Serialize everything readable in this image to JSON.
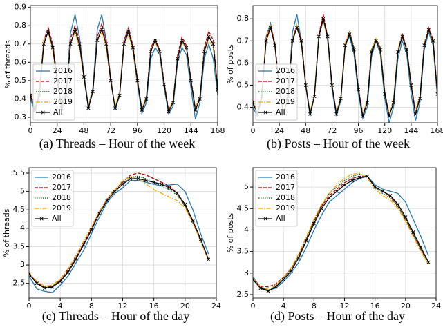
{
  "chart_data": [
    {
      "type": "line",
      "caption": "(a) Threads – Hour of the week",
      "ylabel": "% of threads",
      "grid": true,
      "legend": "lower left",
      "x": [
        0,
        4,
        8,
        12,
        16,
        20,
        24,
        28,
        32,
        36,
        40,
        44,
        48,
        52,
        56,
        60,
        64,
        68,
        72,
        76,
        80,
        84,
        88,
        92,
        96,
        100,
        104,
        108,
        112,
        116,
        120,
        124,
        128,
        132,
        136,
        140,
        144,
        148,
        152,
        156,
        160,
        164,
        168
      ],
      "xlim": [
        0,
        168
      ],
      "xticks": [
        0,
        24,
        48,
        72,
        96,
        120,
        144,
        168
      ],
      "ylim": [
        0.27,
        0.91
      ],
      "yticks": [
        0.3,
        0.4,
        0.5,
        0.6,
        0.7,
        0.8,
        0.9
      ],
      "series": [
        {
          "name": "2016",
          "color": "#1f77b4",
          "linestyle": "solid",
          "values": [
            0.4,
            0.33,
            0.42,
            0.72,
            0.76,
            0.7,
            0.52,
            0.36,
            0.46,
            0.76,
            0.86,
            0.74,
            0.54,
            0.36,
            0.46,
            0.78,
            0.86,
            0.72,
            0.52,
            0.34,
            0.42,
            0.72,
            0.78,
            0.66,
            0.48,
            0.32,
            0.38,
            0.62,
            0.68,
            0.64,
            0.46,
            0.32,
            0.36,
            0.6,
            0.68,
            0.64,
            0.46,
            0.29,
            0.38,
            0.62,
            0.7,
            0.62,
            0.42
          ]
        },
        {
          "name": "2017",
          "color": "#c00000",
          "linestyle": "dashed",
          "values": [
            0.43,
            0.35,
            0.43,
            0.72,
            0.79,
            0.7,
            0.51,
            0.35,
            0.43,
            0.73,
            0.8,
            0.72,
            0.53,
            0.35,
            0.45,
            0.74,
            0.81,
            0.72,
            0.51,
            0.35,
            0.43,
            0.72,
            0.79,
            0.69,
            0.51,
            0.34,
            0.41,
            0.68,
            0.73,
            0.67,
            0.49,
            0.34,
            0.39,
            0.64,
            0.74,
            0.69,
            0.51,
            0.35,
            0.41,
            0.68,
            0.77,
            0.72,
            0.46
          ]
        },
        {
          "name": "2018",
          "color": "#005a00",
          "linestyle": "dotted",
          "values": [
            0.42,
            0.34,
            0.42,
            0.7,
            0.77,
            0.68,
            0.5,
            0.35,
            0.43,
            0.7,
            0.77,
            0.69,
            0.52,
            0.35,
            0.44,
            0.72,
            0.78,
            0.7,
            0.5,
            0.35,
            0.42,
            0.7,
            0.76,
            0.67,
            0.5,
            0.34,
            0.4,
            0.66,
            0.73,
            0.66,
            0.48,
            0.33,
            0.39,
            0.62,
            0.71,
            0.68,
            0.5,
            0.34,
            0.4,
            0.66,
            0.74,
            0.7,
            0.45
          ]
        },
        {
          "name": "2019",
          "color": "#ffa500",
          "linestyle": "dashdot",
          "values": [
            0.42,
            0.35,
            0.44,
            0.72,
            0.76,
            0.66,
            0.49,
            0.36,
            0.44,
            0.71,
            0.76,
            0.68,
            0.51,
            0.36,
            0.45,
            0.72,
            0.76,
            0.68,
            0.49,
            0.36,
            0.43,
            0.7,
            0.75,
            0.66,
            0.49,
            0.35,
            0.41,
            0.66,
            0.71,
            0.65,
            0.47,
            0.34,
            0.39,
            0.63,
            0.71,
            0.67,
            0.49,
            0.35,
            0.41,
            0.66,
            0.72,
            0.68,
            0.44
          ]
        },
        {
          "name": "All",
          "color": "#000000",
          "linestyle": "solid",
          "marker": "x",
          "values": [
            0.42,
            0.34,
            0.42,
            0.7,
            0.77,
            0.68,
            0.5,
            0.35,
            0.42,
            0.7,
            0.78,
            0.7,
            0.52,
            0.35,
            0.44,
            0.72,
            0.78,
            0.7,
            0.5,
            0.35,
            0.42,
            0.7,
            0.77,
            0.68,
            0.5,
            0.34,
            0.4,
            0.66,
            0.72,
            0.66,
            0.48,
            0.33,
            0.38,
            0.62,
            0.72,
            0.68,
            0.5,
            0.34,
            0.4,
            0.66,
            0.74,
            0.7,
            0.45
          ]
        }
      ]
    },
    {
      "type": "line",
      "caption": "(b) Posts – Hour of the week",
      "ylabel": "% of posts",
      "grid": true,
      "legend": "lower left",
      "x": [
        0,
        4,
        8,
        12,
        16,
        20,
        24,
        28,
        32,
        36,
        40,
        44,
        48,
        52,
        56,
        60,
        64,
        68,
        72,
        76,
        80,
        84,
        88,
        92,
        96,
        100,
        104,
        108,
        112,
        116,
        120,
        124,
        128,
        132,
        136,
        140,
        144,
        148,
        152,
        156,
        160,
        164,
        168
      ],
      "xlim": [
        0,
        168
      ],
      "xticks": [
        0,
        24,
        48,
        72,
        96,
        120,
        144,
        168
      ],
      "ylim": [
        0.33,
        0.86
      ],
      "yticks": [
        0.4,
        0.5,
        0.6,
        0.7,
        0.8
      ],
      "series": [
        {
          "name": "2016",
          "color": "#1f77b4",
          "linestyle": "solid",
          "values": [
            0.4,
            0.36,
            0.44,
            0.72,
            0.78,
            0.68,
            0.48,
            0.37,
            0.46,
            0.74,
            0.82,
            0.7,
            0.5,
            0.36,
            0.45,
            0.73,
            0.8,
            0.7,
            0.48,
            0.36,
            0.43,
            0.68,
            0.72,
            0.64,
            0.46,
            0.35,
            0.4,
            0.63,
            0.7,
            0.64,
            0.44,
            0.33,
            0.4,
            0.62,
            0.7,
            0.64,
            0.46,
            0.34,
            0.42,
            0.66,
            0.74,
            0.68,
            0.44
          ]
        },
        {
          "name": "2017",
          "color": "#c00000",
          "linestyle": "dashed",
          "values": [
            0.43,
            0.37,
            0.45,
            0.71,
            0.77,
            0.69,
            0.49,
            0.37,
            0.45,
            0.71,
            0.77,
            0.71,
            0.51,
            0.37,
            0.45,
            0.73,
            0.82,
            0.72,
            0.5,
            0.37,
            0.44,
            0.69,
            0.74,
            0.67,
            0.49,
            0.37,
            0.43,
            0.66,
            0.71,
            0.67,
            0.47,
            0.37,
            0.43,
            0.66,
            0.73,
            0.67,
            0.51,
            0.38,
            0.45,
            0.69,
            0.76,
            0.71,
            0.47
          ]
        },
        {
          "name": "2018",
          "color": "#005a00",
          "linestyle": "dotted",
          "values": [
            0.42,
            0.37,
            0.45,
            0.7,
            0.76,
            0.68,
            0.48,
            0.37,
            0.45,
            0.7,
            0.76,
            0.7,
            0.5,
            0.37,
            0.46,
            0.72,
            0.79,
            0.72,
            0.5,
            0.37,
            0.44,
            0.68,
            0.74,
            0.67,
            0.48,
            0.36,
            0.43,
            0.66,
            0.71,
            0.67,
            0.47,
            0.36,
            0.42,
            0.66,
            0.72,
            0.67,
            0.5,
            0.37,
            0.44,
            0.68,
            0.75,
            0.7,
            0.46
          ]
        },
        {
          "name": "2019",
          "color": "#ffa500",
          "linestyle": "dashdot",
          "values": [
            0.42,
            0.38,
            0.46,
            0.72,
            0.77,
            0.67,
            0.48,
            0.38,
            0.46,
            0.71,
            0.77,
            0.69,
            0.5,
            0.38,
            0.46,
            0.73,
            0.79,
            0.71,
            0.49,
            0.38,
            0.45,
            0.69,
            0.74,
            0.66,
            0.48,
            0.37,
            0.43,
            0.66,
            0.71,
            0.65,
            0.46,
            0.37,
            0.43,
            0.66,
            0.72,
            0.66,
            0.49,
            0.38,
            0.45,
            0.69,
            0.75,
            0.69,
            0.45
          ]
        },
        {
          "name": "All",
          "color": "#000000",
          "linestyle": "solid",
          "marker": "x",
          "values": [
            0.42,
            0.37,
            0.45,
            0.7,
            0.76,
            0.68,
            0.48,
            0.37,
            0.45,
            0.7,
            0.76,
            0.7,
            0.5,
            0.37,
            0.45,
            0.72,
            0.8,
            0.72,
            0.5,
            0.37,
            0.44,
            0.68,
            0.73,
            0.66,
            0.48,
            0.36,
            0.42,
            0.65,
            0.7,
            0.66,
            0.46,
            0.36,
            0.42,
            0.65,
            0.72,
            0.66,
            0.5,
            0.37,
            0.44,
            0.68,
            0.75,
            0.7,
            0.46
          ]
        }
      ]
    },
    {
      "type": "line",
      "caption": "(c) Threads – Hour of the day",
      "ylabel": "% of threads",
      "grid": true,
      "legend": "upper left",
      "x": [
        0,
        1,
        2,
        3,
        4,
        5,
        6,
        7,
        8,
        9,
        10,
        11,
        12,
        13,
        14,
        15,
        16,
        17,
        18,
        19,
        20,
        21,
        22,
        23
      ],
      "xlim": [
        0,
        24
      ],
      "xticks": [
        0,
        4,
        8,
        12,
        16,
        20,
        24
      ],
      "ylim": [
        2.1,
        5.65
      ],
      "yticks": [
        2.5,
        3.0,
        3.5,
        4.0,
        4.5,
        5.0,
        5.5
      ],
      "series": [
        {
          "name": "2016",
          "color": "#1f77b4",
          "linestyle": "solid",
          "values": [
            2.7,
            2.35,
            2.28,
            2.25,
            2.45,
            2.7,
            3.05,
            3.4,
            3.85,
            4.3,
            4.7,
            4.95,
            5.1,
            5.3,
            5.3,
            5.25,
            5.2,
            5.15,
            5.18,
            5.2,
            5.0,
            4.5,
            3.85,
            3.3
          ]
        },
        {
          "name": "2017",
          "color": "#c00000",
          "linestyle": "dashed",
          "values": [
            2.78,
            2.52,
            2.4,
            2.42,
            2.58,
            2.85,
            3.2,
            3.6,
            4.0,
            4.45,
            4.8,
            5.05,
            5.25,
            5.45,
            5.5,
            5.45,
            5.35,
            5.25,
            5.15,
            4.95,
            4.6,
            4.15,
            3.65,
            3.15
          ]
        },
        {
          "name": "2018",
          "color": "#005a00",
          "linestyle": "dotted",
          "values": [
            2.76,
            2.5,
            2.38,
            2.42,
            2.57,
            2.82,
            3.17,
            3.57,
            3.97,
            4.42,
            4.78,
            5.02,
            5.22,
            5.4,
            5.42,
            5.35,
            5.25,
            5.15,
            5.05,
            4.9,
            4.6,
            4.15,
            3.65,
            3.15
          ]
        },
        {
          "name": "2019",
          "color": "#ffa500",
          "linestyle": "dashdot",
          "values": [
            2.8,
            2.55,
            2.42,
            2.45,
            2.62,
            2.9,
            3.25,
            3.65,
            4.05,
            4.45,
            4.78,
            5.05,
            5.3,
            5.4,
            5.35,
            5.2,
            5.05,
            4.95,
            4.85,
            4.75,
            4.55,
            4.15,
            3.65,
            3.12
          ]
        },
        {
          "name": "All",
          "color": "#000000",
          "linestyle": "solid",
          "marker": "x",
          "values": [
            2.75,
            2.5,
            2.37,
            2.4,
            2.55,
            2.8,
            3.15,
            3.55,
            3.95,
            4.4,
            4.75,
            5.0,
            5.2,
            5.35,
            5.35,
            5.3,
            5.25,
            5.2,
            5.1,
            4.95,
            4.65,
            4.2,
            3.7,
            3.15
          ]
        }
      ]
    },
    {
      "type": "line",
      "caption": "(d) Posts – Hour of the day",
      "ylabel": "% of posts",
      "grid": true,
      "legend": "upper left",
      "x": [
        0,
        1,
        2,
        3,
        4,
        5,
        6,
        7,
        8,
        9,
        10,
        11,
        12,
        13,
        14,
        15,
        16,
        17,
        18,
        19,
        20,
        21,
        22,
        23
      ],
      "xlim": [
        0,
        24
      ],
      "xticks": [
        0,
        4,
        8,
        12,
        16,
        20,
        24
      ],
      "ylim": [
        2.42,
        5.45
      ],
      "yticks": [
        2.5,
        3.0,
        3.5,
        4.0,
        4.5,
        5.0
      ],
      "series": [
        {
          "name": "2016",
          "color": "#1f77b4",
          "linestyle": "solid",
          "values": [
            2.9,
            2.68,
            2.6,
            2.65,
            2.8,
            3.0,
            3.25,
            3.6,
            4.0,
            4.35,
            4.65,
            4.8,
            4.95,
            5.1,
            5.2,
            5.25,
            5.05,
            4.95,
            4.9,
            4.85,
            4.65,
            4.25,
            3.85,
            3.4
          ]
        },
        {
          "name": "2017",
          "color": "#c00000",
          "linestyle": "dashed",
          "values": [
            2.85,
            2.7,
            2.68,
            2.75,
            2.9,
            3.1,
            3.4,
            3.8,
            4.2,
            4.55,
            4.8,
            4.95,
            5.1,
            5.2,
            5.25,
            5.25,
            5.0,
            4.9,
            4.78,
            4.55,
            4.25,
            3.9,
            3.55,
            3.25
          ]
        },
        {
          "name": "2018",
          "color": "#005a00",
          "linestyle": "dotted",
          "values": [
            2.85,
            2.65,
            2.6,
            2.7,
            2.88,
            3.1,
            3.4,
            3.8,
            4.22,
            4.58,
            4.85,
            5.0,
            5.15,
            5.25,
            5.3,
            5.25,
            4.98,
            4.85,
            4.75,
            4.55,
            4.25,
            3.9,
            3.55,
            3.22
          ]
        },
        {
          "name": "2019",
          "color": "#ffa500",
          "linestyle": "dashdot",
          "values": [
            2.88,
            2.68,
            2.62,
            2.72,
            2.9,
            3.12,
            3.45,
            3.85,
            4.25,
            4.6,
            4.85,
            5.05,
            5.2,
            5.3,
            5.32,
            5.2,
            4.95,
            4.8,
            4.7,
            4.5,
            4.2,
            3.85,
            3.5,
            3.2
          ]
        },
        {
          "name": "All",
          "color": "#000000",
          "linestyle": "solid",
          "marker": "x",
          "values": [
            2.85,
            2.65,
            2.58,
            2.68,
            2.85,
            3.05,
            3.35,
            3.75,
            4.15,
            4.5,
            4.75,
            4.9,
            5.05,
            5.15,
            5.22,
            5.25,
            5.0,
            4.9,
            4.8,
            4.6,
            4.3,
            3.95,
            3.6,
            3.25
          ]
        }
      ]
    }
  ]
}
